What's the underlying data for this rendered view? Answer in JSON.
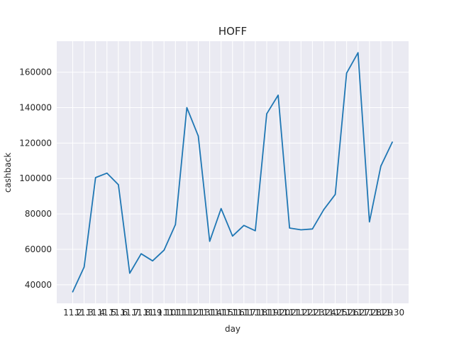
{
  "chart_data": {
    "type": "line",
    "title": "HOFF",
    "xlabel": "day",
    "ylabel": "cashback",
    "categories": [
      "11.2",
      "11.3",
      "11.4",
      "11.5",
      "11.6",
      "11.7",
      "11.8",
      "11.9",
      "11.10",
      "11.11",
      "11.12",
      "11.13",
      "11.14",
      "11.15",
      "11.16",
      "11.17",
      "11.18",
      "11.19",
      "11.20",
      "11.21",
      "11.22",
      "11.23",
      "11.24",
      "11.25",
      "11.26",
      "11.27",
      "11.28",
      "11.29",
      "11.30"
    ],
    "values": [
      36000,
      50000,
      100500,
      103000,
      96500,
      46500,
      57500,
      53500,
      59500,
      74000,
      140000,
      124000,
      64500,
      83000,
      67500,
      73500,
      70500,
      136500,
      147000,
      72000,
      71000,
      71500,
      82500,
      91000,
      159500,
      171000,
      75500,
      107000,
      120500
    ],
    "ylim": [
      29500,
      177500
    ],
    "yticks": [
      40000,
      60000,
      80000,
      100000,
      120000,
      140000,
      160000
    ],
    "ytick_labels": [
      "40000",
      "60000",
      "80000",
      "100000",
      "120000",
      "140000",
      "160000"
    ],
    "grid": true,
    "colors": {
      "background": "#eaeaf2",
      "line": "#1f77b4"
    }
  }
}
